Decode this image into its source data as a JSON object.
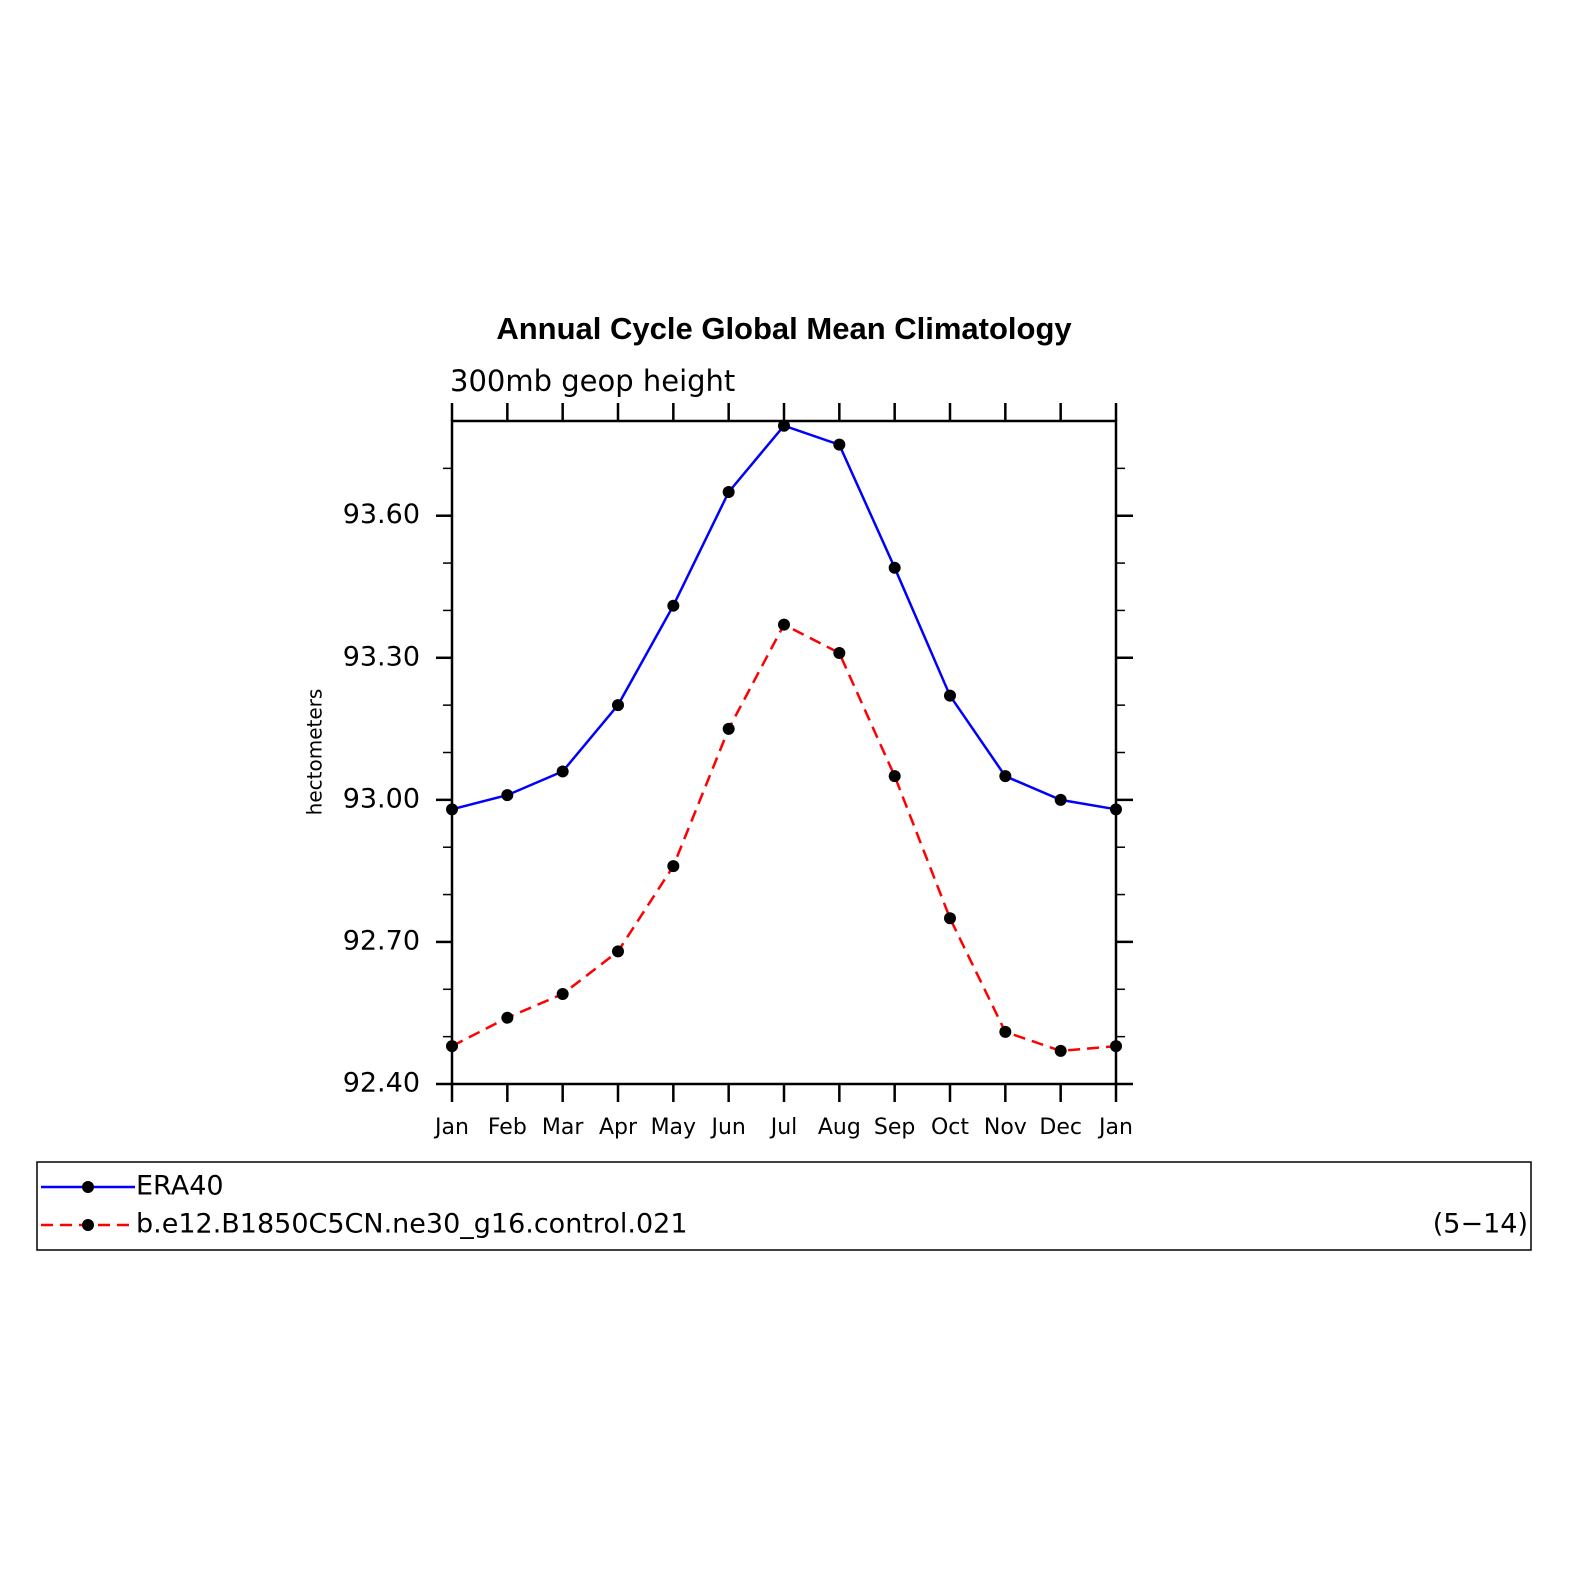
{
  "chart_data": {
    "type": "line",
    "title": "Annual Cycle Global Mean Climatology",
    "subtitle": "300mb geop height",
    "y_label": "hectometers",
    "annotation": "(5−14)",
    "categories": [
      "Jan",
      "Feb",
      "Mar",
      "Apr",
      "May",
      "Jun",
      "Jul",
      "Aug",
      "Sep",
      "Oct",
      "Nov",
      "Dec",
      "Jan"
    ],
    "series": [
      {
        "name": "ERA40",
        "color": "#0000ff",
        "dash": false,
        "values": [
          92.98,
          93.01,
          93.06,
          93.2,
          93.41,
          93.65,
          93.79,
          93.75,
          93.49,
          93.22,
          93.05,
          93.0,
          92.98
        ]
      },
      {
        "name": "b.e12.B1850C5CN.ne30_g16.control.021",
        "color": "#ff0000",
        "dash": true,
        "values": [
          92.48,
          92.54,
          92.59,
          92.68,
          92.86,
          93.15,
          93.37,
          93.31,
          93.05,
          92.75,
          92.51,
          92.47,
          92.48
        ]
      }
    ],
    "ylim": [
      92.4,
      93.8
    ],
    "yticks": [
      {
        "value": 92.4,
        "label": "92.40"
      },
      {
        "value": 92.7,
        "label": "92.70"
      },
      {
        "value": 93.0,
        "label": "93.00"
      },
      {
        "value": 93.3,
        "label": "93.30"
      },
      {
        "value": 93.6,
        "label": "93.60"
      }
    ],
    "yminor_ticks": [
      92.5,
      92.6,
      92.8,
      92.9,
      93.1,
      93.2,
      93.4,
      93.5,
      93.7
    ],
    "marker_color": "#000000"
  }
}
